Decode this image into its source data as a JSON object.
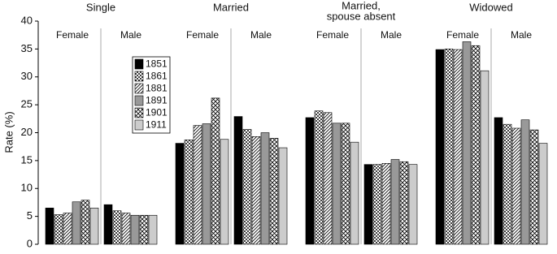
{
  "chart_data": {
    "type": "bar",
    "y_label": "Rate (%)",
    "ylim": [
      0,
      40
    ],
    "yticks": [
      0,
      5,
      10,
      15,
      20,
      25,
      30,
      35,
      40
    ],
    "panels": [
      {
        "title": [
          "Single"
        ],
        "groups": [
          "Female",
          "Male"
        ]
      },
      {
        "title": [
          "Married"
        ],
        "groups": [
          "Female",
          "Male"
        ]
      },
      {
        "title": [
          "Married,",
          "spouse absent"
        ],
        "groups": [
          "Female",
          "Male"
        ]
      },
      {
        "title": [
          "Widowed"
        ],
        "groups": [
          "Female",
          "Male"
        ]
      }
    ],
    "series": [
      {
        "name": "1851",
        "color": "#000000",
        "pattern": "solid",
        "values": [
          6.5,
          7.1,
          18.1,
          22.9,
          22.7,
          14.3,
          34.9,
          22.7
        ]
      },
      {
        "name": "1861",
        "color": "#000000",
        "pattern": "dots",
        "values": [
          5.3,
          6.0,
          18.7,
          20.6,
          23.9,
          14.3,
          35.0,
          21.5
        ]
      },
      {
        "name": "1881",
        "color": "#000000",
        "pattern": "diagonal",
        "values": [
          5.6,
          5.6,
          21.3,
          19.3,
          23.6,
          14.5,
          34.9,
          20.8
        ]
      },
      {
        "name": "1891",
        "color": "#999999",
        "pattern": "solid",
        "values": [
          7.6,
          5.2,
          21.6,
          20.0,
          21.7,
          15.2,
          36.3,
          22.3
        ]
      },
      {
        "name": "1901",
        "color": "#000000",
        "pattern": "crosshatch",
        "values": [
          7.9,
          5.2,
          26.2,
          19.0,
          21.7,
          14.8,
          35.6,
          20.5
        ]
      },
      {
        "name": "1911",
        "color": "#cccccc",
        "pattern": "solid",
        "values": [
          6.5,
          5.2,
          18.8,
          17.3,
          18.3,
          14.3,
          31.1,
          18.1
        ]
      }
    ]
  }
}
